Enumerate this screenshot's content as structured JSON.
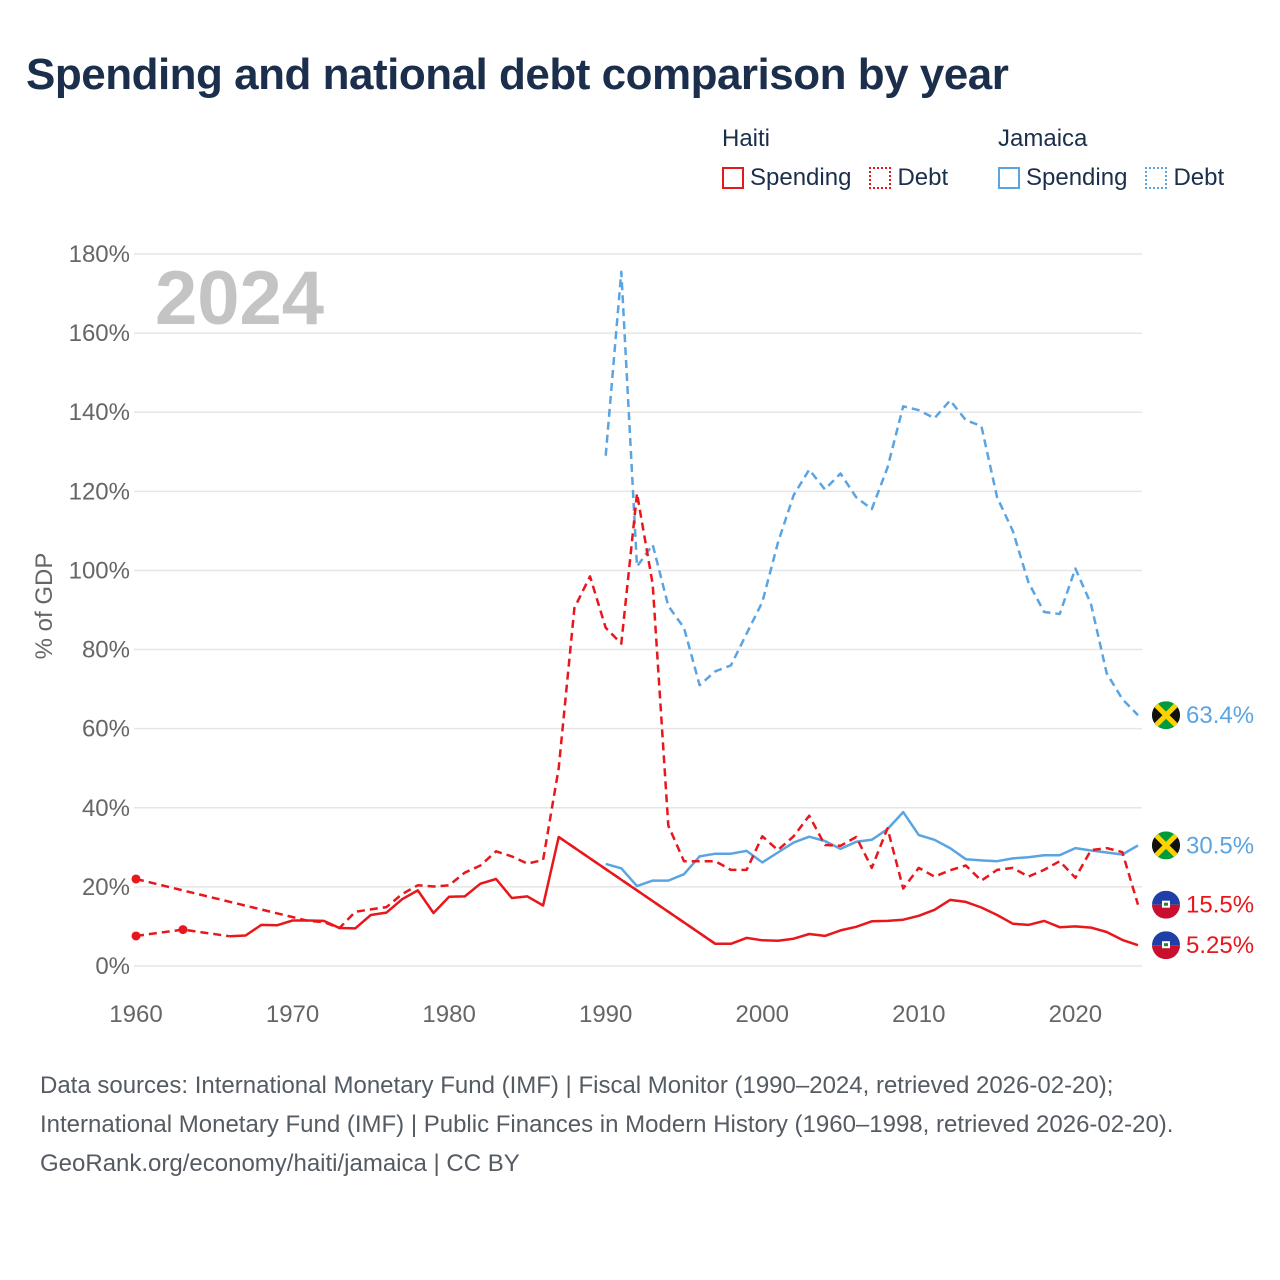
{
  "title": "Spending and national debt comparison by year",
  "legend": {
    "groups": [
      {
        "name": "Haiti",
        "items": [
          "Spending",
          "Debt"
        ]
      },
      {
        "name": "Jamaica",
        "items": [
          "Spending",
          "Debt"
        ]
      }
    ]
  },
  "colors": {
    "haiti": "#e8171c",
    "jamaica": "#5ba4e2",
    "title": "#1b2f4c",
    "axis_text": "#666666",
    "year_watermark": "#c4c4c4",
    "grid": "#e6e6e6"
  },
  "source": {
    "line1": "Data sources: International Monetary Fund (IMF) | Fiscal Monitor (1990–2024, retrieved 2026-02-20); International Monetary Fund (IMF) | Public Finances in Modern History (1960–1998, retrieved 2026-02-20).",
    "line2": "GeoRank.org/economy/haiti/jamaica | CC BY"
  },
  "chart_data": {
    "type": "line",
    "year_label": "2024",
    "ylabel": "% of GDP",
    "xlim": [
      1960,
      2024
    ],
    "ylim": [
      0,
      180
    ],
    "x_ticks": [
      1960,
      1970,
      1980,
      1990,
      2000,
      2010,
      2020
    ],
    "y_ticks": [
      0,
      20,
      40,
      60,
      80,
      100,
      120,
      140,
      160,
      180
    ],
    "y_tick_labels": [
      "0%",
      "20%",
      "40%",
      "60%",
      "80%",
      "100%",
      "120%",
      "140%",
      "160%",
      "180%"
    ],
    "series": [
      {
        "name": "Jamaica Debt",
        "country": "Jamaica",
        "metric": "Debt",
        "style": "dashed",
        "color": "#5ba4e2",
        "end_label": "63.4%",
        "points": [
          [
            1990,
            129
          ],
          [
            1991,
            175.5
          ],
          [
            1992,
            101
          ],
          [
            1993,
            106.5
          ],
          [
            1994,
            91
          ],
          [
            1995,
            85.5
          ],
          [
            1996,
            71
          ],
          [
            1997,
            74.5
          ],
          [
            1998,
            76
          ],
          [
            1999,
            84
          ],
          [
            2000,
            92
          ],
          [
            2001,
            107
          ],
          [
            2002,
            119
          ],
          [
            2003,
            125.5
          ],
          [
            2004,
            120.5
          ],
          [
            2005,
            124.5
          ],
          [
            2006,
            118.5
          ],
          [
            2007,
            115.5
          ],
          [
            2008,
            126
          ],
          [
            2009,
            141.5
          ],
          [
            2010,
            140.5
          ],
          [
            2011,
            138.5
          ],
          [
            2012,
            143
          ],
          [
            2013,
            138
          ],
          [
            2014,
            136.5
          ],
          [
            2015,
            118.5
          ],
          [
            2016,
            110
          ],
          [
            2017,
            97
          ],
          [
            2018,
            89.5
          ],
          [
            2019,
            89
          ],
          [
            2020,
            100.5
          ],
          [
            2021,
            91.5
          ],
          [
            2022,
            74
          ],
          [
            2023,
            67.5
          ],
          [
            2024,
            63.4
          ]
        ]
      },
      {
        "name": "Jamaica Spending",
        "country": "Jamaica",
        "metric": "Spending",
        "style": "solid",
        "color": "#5ba4e2",
        "end_label": "30.5%",
        "points": [
          [
            1990,
            25.8
          ],
          [
            1991,
            24.7
          ],
          [
            1992,
            20.2
          ],
          [
            1993,
            21.6
          ],
          [
            1994,
            21.6
          ],
          [
            1995,
            23.2
          ],
          [
            1996,
            27.7
          ],
          [
            1997,
            28.4
          ],
          [
            1998,
            28.4
          ],
          [
            1999,
            29.1
          ],
          [
            2000,
            26.2
          ],
          [
            2001,
            28.7
          ],
          [
            2002,
            31.2
          ],
          [
            2003,
            32.7
          ],
          [
            2004,
            31.6
          ],
          [
            2005,
            29.6
          ],
          [
            2006,
            31.4
          ],
          [
            2007,
            31.9
          ],
          [
            2008,
            34.6
          ],
          [
            2009,
            38.9
          ],
          [
            2010,
            33.1
          ],
          [
            2011,
            31.9
          ],
          [
            2012,
            29.8
          ],
          [
            2013,
            27
          ],
          [
            2014,
            26.7
          ],
          [
            2015,
            26.5
          ],
          [
            2016,
            27.2
          ],
          [
            2017,
            27.5
          ],
          [
            2018,
            28
          ],
          [
            2019,
            28
          ],
          [
            2020,
            29.8
          ],
          [
            2021,
            29.2
          ],
          [
            2022,
            28.7
          ],
          [
            2023,
            28.2
          ],
          [
            2024,
            30.5
          ]
        ]
      },
      {
        "name": "Haiti Debt",
        "country": "Haiti",
        "metric": "Debt",
        "style": "dashed",
        "color": "#e8171c",
        "end_label": "15.5%",
        "points": [
          [
            1960,
            22
          ],
          [
            1971,
            11.4
          ],
          [
            1972,
            11.1
          ],
          [
            1973,
            9.6
          ],
          [
            1974,
            13.7
          ],
          [
            1975,
            14.3
          ],
          [
            1976,
            14.9
          ],
          [
            1977,
            18.2
          ],
          [
            1978,
            20.4
          ],
          [
            1979,
            20.1
          ],
          [
            1980,
            20.4
          ],
          [
            1981,
            23.6
          ],
          [
            1982,
            25.4
          ],
          [
            1983,
            29
          ],
          [
            1984,
            27.7
          ],
          [
            1985,
            25.9
          ],
          [
            1986,
            26.8
          ],
          [
            1987,
            50
          ],
          [
            1988,
            90.5
          ],
          [
            1989,
            98.5
          ],
          [
            1990,
            85.5
          ],
          [
            1991,
            81.5
          ],
          [
            1992,
            119.5
          ],
          [
            1993,
            96.5
          ],
          [
            1994,
            35.5
          ],
          [
            1995,
            26.5
          ],
          [
            1996,
            26.5
          ],
          [
            1997,
            26.5
          ],
          [
            1998,
            24.3
          ],
          [
            1999,
            24.3
          ],
          [
            2000,
            32.8
          ],
          [
            2001,
            29.3
          ],
          [
            2002,
            32.8
          ],
          [
            2003,
            38
          ],
          [
            2004,
            30.6
          ],
          [
            2005,
            30.4
          ],
          [
            2006,
            32.6
          ],
          [
            2007,
            24.8
          ],
          [
            2008,
            34.8
          ],
          [
            2009,
            19.6
          ],
          [
            2010,
            24.8
          ],
          [
            2011,
            22.6
          ],
          [
            2012,
            24.2
          ],
          [
            2013,
            25.4
          ],
          [
            2014,
            21.6
          ],
          [
            2015,
            24.3
          ],
          [
            2016,
            24.8
          ],
          [
            2017,
            22.6
          ],
          [
            2018,
            24.3
          ],
          [
            2019,
            26.5
          ],
          [
            2020,
            22.3
          ],
          [
            2021,
            29.3
          ],
          [
            2022,
            29.8
          ],
          [
            2023,
            28.8
          ],
          [
            2024,
            15.5
          ]
        ]
      },
      {
        "name": "Haiti Spending",
        "country": "Haiti",
        "metric": "Spending",
        "style": "solid",
        "color": "#e8171c",
        "end_label": "5.25%",
        "points": [
          [
            1966,
            7.5
          ],
          [
            1967,
            7.7
          ],
          [
            1968,
            10.4
          ],
          [
            1969,
            10.3
          ],
          [
            1970,
            11.5
          ],
          [
            1971,
            11.5
          ],
          [
            1972,
            11.4
          ],
          [
            1973,
            9.6
          ],
          [
            1974,
            9.5
          ],
          [
            1975,
            12.9
          ],
          [
            1976,
            13.5
          ],
          [
            1977,
            16.9
          ],
          [
            1978,
            19.1
          ],
          [
            1979,
            13.4
          ],
          [
            1980,
            17.5
          ],
          [
            1981,
            17.6
          ],
          [
            1982,
            20.8
          ],
          [
            1983,
            22
          ],
          [
            1984,
            17.2
          ],
          [
            1985,
            17.6
          ],
          [
            1986,
            15.3
          ],
          [
            1987,
            32.6
          ],
          [
            1997,
            5.6
          ],
          [
            1998,
            5.6
          ],
          [
            1999,
            7.1
          ],
          [
            2000,
            6.5
          ],
          [
            2001,
            6.4
          ],
          [
            2002,
            6.9
          ],
          [
            2003,
            8.1
          ],
          [
            2004,
            7.6
          ],
          [
            2005,
            9
          ],
          [
            2006,
            9.9
          ],
          [
            2007,
            11.3
          ],
          [
            2008,
            11.4
          ],
          [
            2009,
            11.7
          ],
          [
            2010,
            12.7
          ],
          [
            2011,
            14.2
          ],
          [
            2012,
            16.7
          ],
          [
            2013,
            16.2
          ],
          [
            2014,
            14.8
          ],
          [
            2015,
            12.9
          ],
          [
            2016,
            10.7
          ],
          [
            2017,
            10.4
          ],
          [
            2018,
            11.4
          ],
          [
            2019,
            9.8
          ],
          [
            2020,
            10
          ],
          [
            2021,
            9.7
          ],
          [
            2022,
            8.6
          ],
          [
            2023,
            6.6
          ],
          [
            2024,
            5.25
          ]
        ]
      }
    ],
    "isolated_points": [
      {
        "series": "Haiti Debt",
        "x": 1960,
        "y": 22
      },
      {
        "series": "Haiti Spending",
        "x": 1960,
        "y": 7.6
      },
      {
        "series": "Haiti Spending",
        "x": 1963,
        "y": 9.2
      }
    ],
    "connector_segments": [
      {
        "series": "Haiti Spending",
        "style": "dashed",
        "points": [
          [
            1960,
            7.6
          ],
          [
            1963,
            9.2
          ],
          [
            1966,
            7.5
          ]
        ]
      },
      {
        "series": "Haiti Spending",
        "style": "dashed",
        "points": [
          [
            1987,
            32.6
          ],
          [
            1997,
            5.6
          ]
        ]
      }
    ]
  }
}
